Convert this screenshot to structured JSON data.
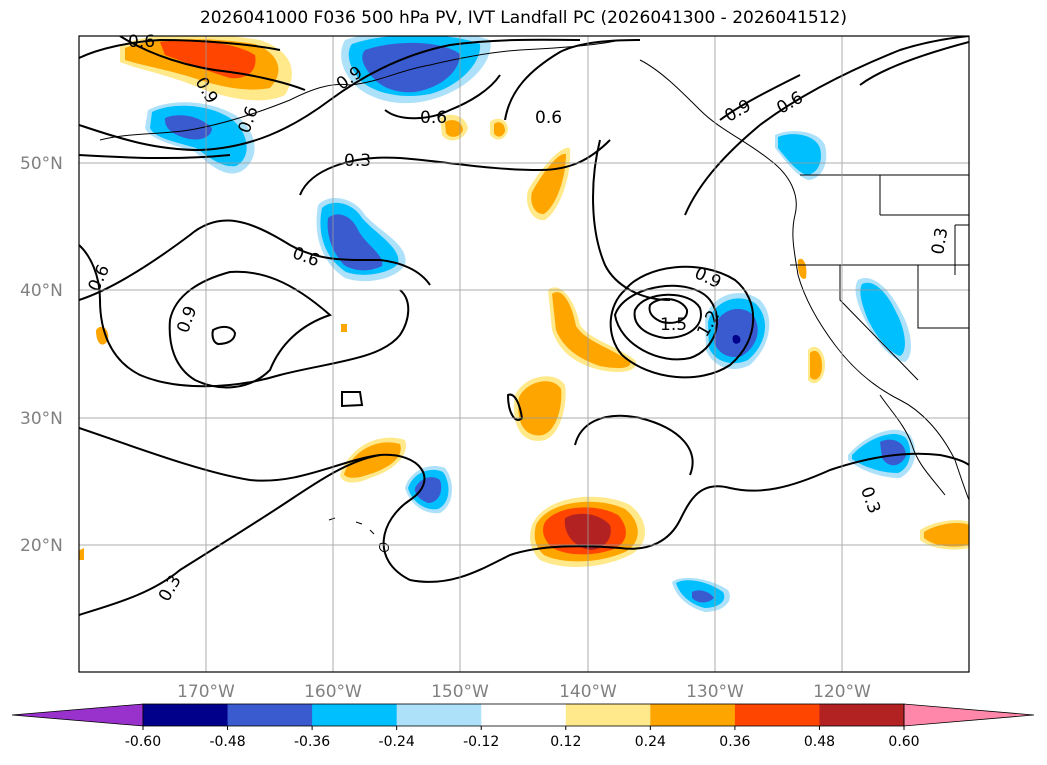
{
  "title": "2026041000 F036 500 hPa PV, IVT Landfall PC (2026041300 - 2026041512)",
  "map": {
    "projection": "PlateCarree",
    "lon_range": [
      -180,
      -110
    ],
    "lat_range": [
      10,
      60
    ],
    "gridlines": true,
    "lat_labels": [
      "50°N",
      "40°N",
      "30°N",
      "20°N"
    ],
    "lon_labels": [
      "170°W",
      "160°W",
      "150°W",
      "140°W",
      "130°W",
      "120°W"
    ]
  },
  "contour_labels": [
    "0.6",
    "0.9",
    "0.6",
    "0.9",
    "0.6",
    "0.6",
    "0.3",
    "0.6",
    "0.6",
    "0.9",
    "1.5",
    "1.2",
    "0.9",
    "0.6",
    "0.9",
    "0.3",
    "0.3",
    "0.3"
  ],
  "colorbar": {
    "extend": "both",
    "ticks": [
      "-0.60",
      "-0.48",
      "-0.36",
      "-0.24",
      "-0.12",
      "0.12",
      "0.24",
      "0.36",
      "0.48",
      "0.60"
    ],
    "colors": [
      "#9932CC",
      "#00008B",
      "#3A5BD0",
      "#00BFFF",
      "#ADE1FA",
      "#FFFFFF",
      "#FFE98A",
      "#FFA500",
      "#FF4500",
      "#B22222",
      "#FF88AA"
    ]
  }
}
